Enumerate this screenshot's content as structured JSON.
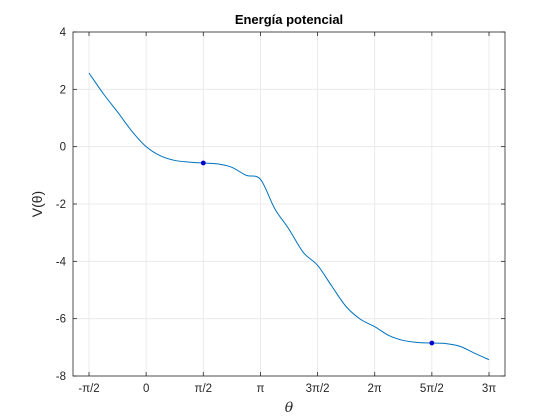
{
  "chart_data": {
    "type": "line",
    "title": "Energía potencial",
    "xlabel": "θ",
    "ylabel": "V(θ)",
    "xlim": [
      -1.5708,
      9.4248
    ],
    "ylim": [
      -8,
      4
    ],
    "grid": true,
    "x_ticks": [
      {
        "value": -1.5708,
        "label": "-π/2"
      },
      {
        "value": 0,
        "label": "0"
      },
      {
        "value": 1.5708,
        "label": "π/2"
      },
      {
        "value": 3.1416,
        "label": "π"
      },
      {
        "value": 4.7124,
        "label": "3π/2"
      },
      {
        "value": 6.2832,
        "label": "2π"
      },
      {
        "value": 7.854,
        "label": "5π/2"
      },
      {
        "value": 9.4248,
        "label": "3π"
      }
    ],
    "y_ticks": [
      {
        "value": -8,
        "label": "-8"
      },
      {
        "value": -6,
        "label": "-6"
      },
      {
        "value": -4,
        "label": "-4"
      },
      {
        "value": -2,
        "label": "-2"
      },
      {
        "value": 0,
        "label": "0"
      },
      {
        "value": 2,
        "label": "2"
      },
      {
        "value": 4,
        "label": "4"
      }
    ],
    "series": [
      {
        "color": "#0072bd",
        "x": [
          -1.5708,
          -1.1781,
          -0.7854,
          -0.3927,
          0,
          0.3927,
          0.7854,
          1.1781,
          1.5708,
          1.9635,
          2.3562,
          2.7489,
          3.1416,
          3.5343,
          3.927,
          4.3197,
          4.7124,
          5.1051,
          5.4978,
          5.8905,
          6.2832,
          6.6759,
          7.0686,
          7.4613,
          7.854,
          8.2467,
          8.6394,
          9.0321,
          9.4248
        ],
        "y": [
          2.57,
          1.85,
          1.21,
          0.54,
          0,
          -0.32,
          -0.48,
          -0.54,
          -0.57,
          -0.6,
          -0.72,
          -1.0,
          -1.14,
          -2.16,
          -2.88,
          -3.69,
          -4.14,
          -4.87,
          -5.58,
          -6.02,
          -6.28,
          -6.59,
          -6.76,
          -6.83,
          -6.85,
          -6.87,
          -6.97,
          -7.21,
          -7.43
        ]
      }
    ],
    "markers": [
      {
        "x": 1.5708,
        "y": -0.57,
        "color": "#0000cc"
      },
      {
        "x": 7.854,
        "y": -6.85,
        "color": "#0000cc"
      }
    ]
  }
}
